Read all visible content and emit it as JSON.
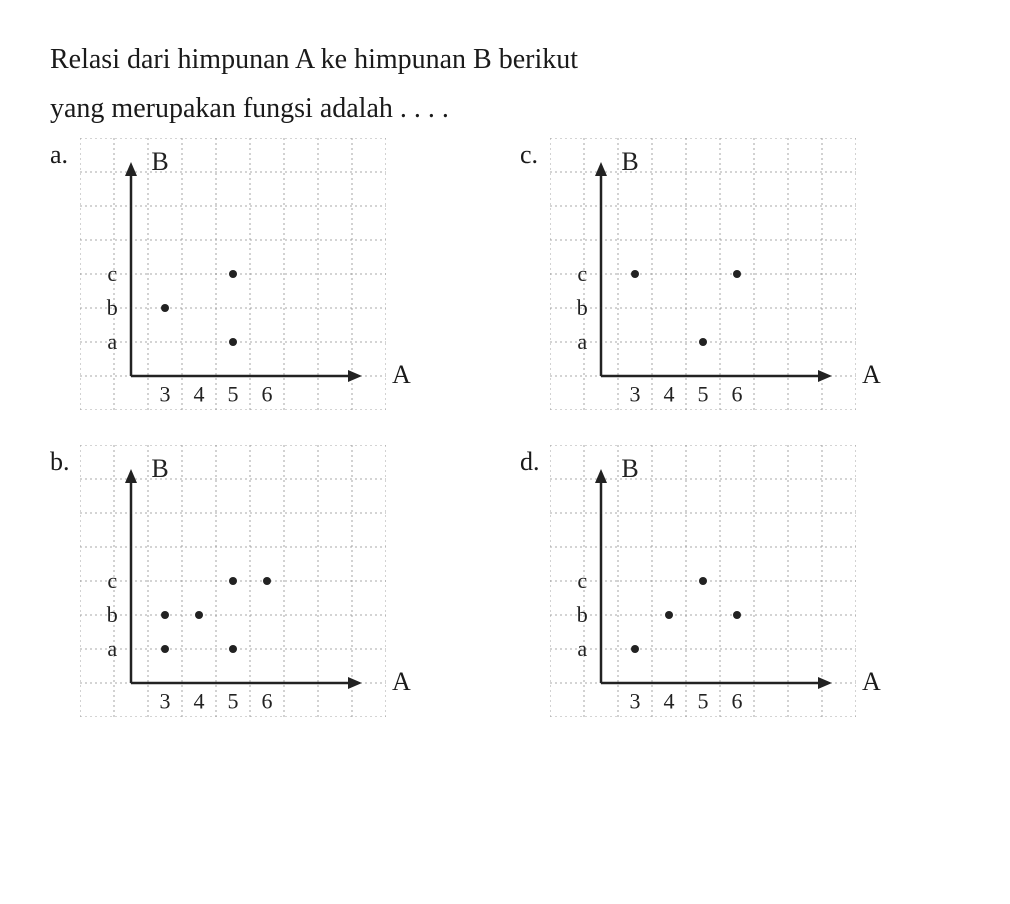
{
  "question": {
    "line1": "Relasi dari himpunan A ke himpunan B berikut",
    "line2": "yang merupakan fungsi adalah . . . ."
  },
  "style": {
    "cell_size": 34,
    "grid_cols": 9,
    "grid_rows": 8,
    "origin_col": 1.5,
    "origin_row": 7,
    "point_radius": 4,
    "point_color": "#222222",
    "axis_color": "#222222",
    "axis_width": 2.5,
    "grid_color": "#8f8f8f",
    "grid_dash": "2 3",
    "grid_width": 0.8,
    "font_family": "Times New Roman",
    "label_fontsize": 22,
    "outer_label_fontsize": 26,
    "background": "#ffffff"
  },
  "axes": {
    "x_label": "A",
    "y_label": "B",
    "x_ticks": [
      "3",
      "4",
      "5",
      "6"
    ],
    "y_ticks": [
      "a",
      "b",
      "c"
    ],
    "x_tick_positions": [
      1,
      2,
      3,
      4
    ],
    "y_tick_positions": [
      1,
      2,
      3
    ]
  },
  "options": {
    "a": {
      "label": "a.",
      "points": [
        {
          "x": 1,
          "y": 2
        },
        {
          "x": 3,
          "y": 1
        },
        {
          "x": 3,
          "y": 3
        }
      ]
    },
    "b": {
      "label": "b.",
      "points": [
        {
          "x": 1,
          "y": 1
        },
        {
          "x": 1,
          "y": 2
        },
        {
          "x": 2,
          "y": 2
        },
        {
          "x": 3,
          "y": 1
        },
        {
          "x": 3,
          "y": 3
        },
        {
          "x": 4,
          "y": 3
        }
      ]
    },
    "c": {
      "label": "c.",
      "points": [
        {
          "x": 1,
          "y": 3
        },
        {
          "x": 3,
          "y": 1
        },
        {
          "x": 4,
          "y": 3
        }
      ]
    },
    "d": {
      "label": "d.",
      "points": [
        {
          "x": 1,
          "y": 1
        },
        {
          "x": 2,
          "y": 2
        },
        {
          "x": 3,
          "y": 3
        },
        {
          "x": 4,
          "y": 2
        }
      ]
    }
  }
}
